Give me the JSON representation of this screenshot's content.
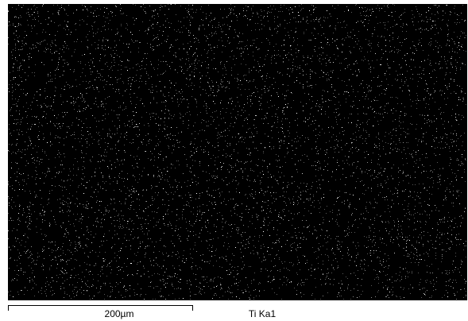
{
  "scale_bar": {
    "label": "200µm"
  },
  "map": {
    "element": "Ti Ka1"
  }
}
